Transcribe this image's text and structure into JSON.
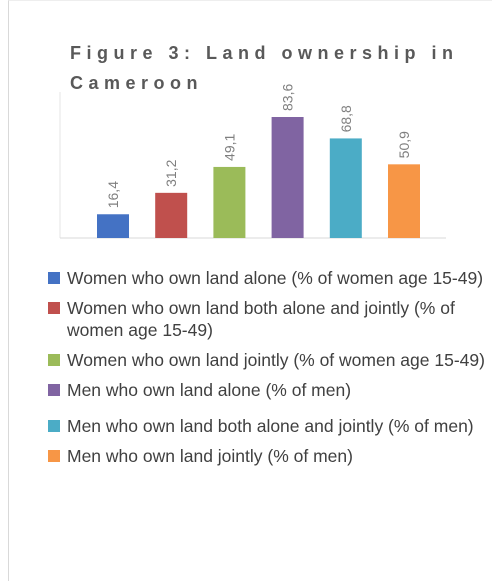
{
  "chart_data": {
    "type": "bar",
    "title": "Figure 3: Land ownership in Cameroon",
    "series": [
      {
        "name": "Women who own land alone (% of women age 15-49)",
        "color": "#4472c4",
        "values": [
          16.4
        ],
        "value_labels": [
          "16,4"
        ]
      },
      {
        "name": "Women who own land both alone and jointly (% of women age 15-49)",
        "color": "#c0504d",
        "values": [
          31.2
        ],
        "value_labels": [
          "31,2"
        ]
      },
      {
        "name": "Women who own land jointly (% of women age 15-49)",
        "color": "#9bbb59",
        "values": [
          49.1
        ],
        "value_labels": [
          "49,1"
        ]
      },
      {
        "name": "Men who own land alone (% of men)",
        "color": "#8064a2",
        "values": [
          83.6
        ],
        "value_labels": [
          "83,6"
        ]
      },
      {
        "name": "Men who own land both alone and jointly (% of men)",
        "color": "#4bacc6",
        "values": [
          68.8
        ],
        "value_labels": [
          "68,8"
        ]
      },
      {
        "name": "Men who own land jointly (% of men)",
        "color": "#f79646",
        "values": [
          50.9
        ],
        "value_labels": [
          "50,9"
        ]
      }
    ]
  }
}
